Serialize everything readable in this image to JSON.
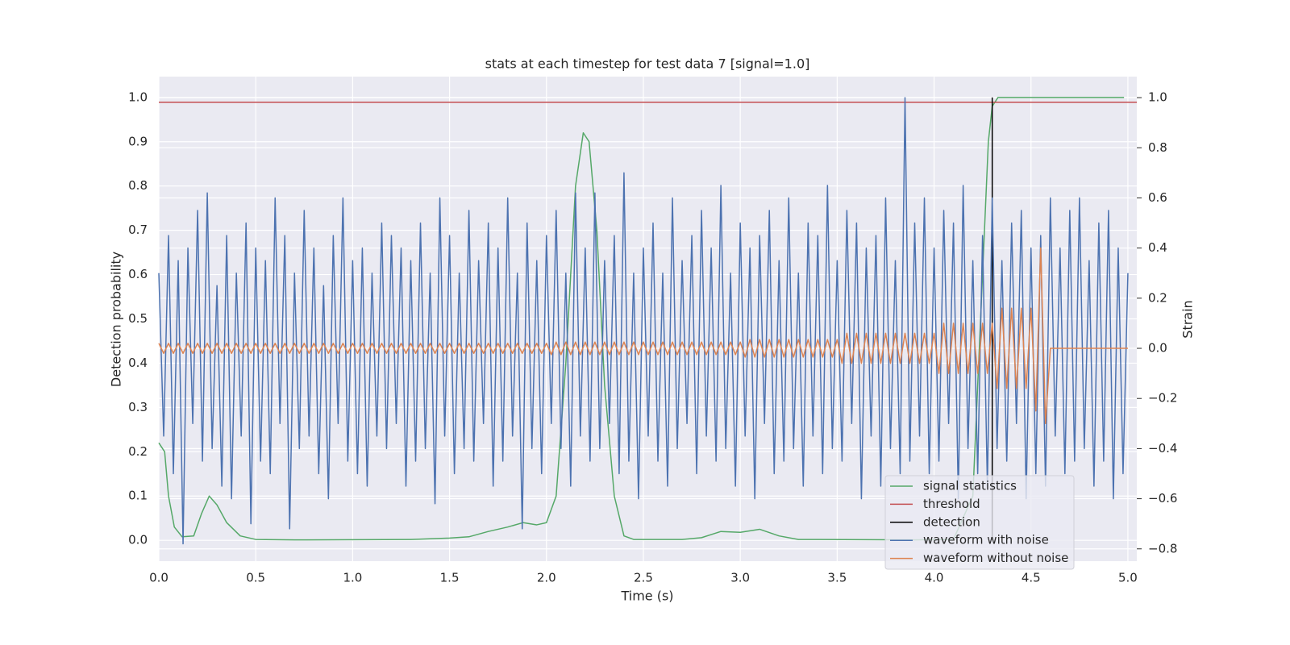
{
  "chart_data": {
    "type": "line",
    "title": "stats at each timestep for test data 7 [signal=1.0]",
    "x_label": "Time (s)",
    "y_label": "Detection probability",
    "y2_label": "Strain",
    "xlim": [
      0,
      5.046
    ],
    "ylim": [
      -0.047,
      1.047
    ],
    "y2lim": [
      -0.849,
      1.084
    ],
    "xticks": [
      {
        "value": 0,
        "label": "0.0"
      },
      {
        "value": 0.5,
        "label": "0.5"
      },
      {
        "value": 1,
        "label": "1.0"
      },
      {
        "value": 1.5,
        "label": "1.5"
      },
      {
        "value": 2,
        "label": "2.0"
      },
      {
        "value": 2.5,
        "label": "2.5"
      },
      {
        "value": 3,
        "label": "3.0"
      },
      {
        "value": 3.5,
        "label": "3.5"
      },
      {
        "value": 4,
        "label": "4.0"
      },
      {
        "value": 4.5,
        "label": "4.5"
      },
      {
        "value": 5,
        "label": "5.0"
      }
    ],
    "yticks": [
      {
        "value": 0,
        "label": "0.0"
      },
      0.1,
      0.2,
      0.3,
      0.4,
      0.5,
      0.6,
      0.7,
      0.8,
      0.9,
      {
        "value": 1,
        "label": "1.0"
      }
    ],
    "y2ticks": [
      {
        "value": -0.8,
        "label": "−0.8"
      },
      {
        "value": -0.6,
        "label": "−0.6"
      },
      {
        "value": -0.4,
        "label": "−0.4"
      },
      {
        "value": -0.2,
        "label": "−0.2"
      },
      {
        "value": 0,
        "label": "0.0"
      },
      0.2,
      0.4,
      0.6,
      0.8,
      {
        "value": 1,
        "label": "1.0"
      }
    ],
    "grid": true,
    "legend": "lower right",
    "x": [
      0,
      0.025,
      0.05,
      0.075,
      0.1,
      0.125,
      0.15,
      0.175,
      0.2,
      0.225,
      0.25,
      0.275,
      0.3,
      0.325,
      0.35,
      0.375,
      0.4,
      0.425,
      0.45,
      0.475,
      0.5,
      0.525,
      0.55,
      0.575,
      0.6,
      0.625,
      0.65,
      0.675,
      0.7,
      0.725,
      0.75,
      0.775,
      0.8,
      0.825,
      0.85,
      0.875,
      0.9,
      0.925,
      0.95,
      0.975,
      1,
      1.025,
      1.05,
      1.075,
      1.1,
      1.125,
      1.15,
      1.175,
      1.2,
      1.225,
      1.25,
      1.275,
      1.3,
      1.325,
      1.35,
      1.375,
      1.4,
      1.425,
      1.45,
      1.475,
      1.5,
      1.525,
      1.55,
      1.575,
      1.6,
      1.625,
      1.65,
      1.675,
      1.7,
      1.725,
      1.75,
      1.775,
      1.8,
      1.825,
      1.85,
      1.875,
      1.9,
      1.925,
      1.95,
      1.975,
      2,
      2.025,
      2.05,
      2.075,
      2.1,
      2.125,
      2.15,
      2.175,
      2.2,
      2.225,
      2.25,
      2.275,
      2.3,
      2.325,
      2.35,
      2.375,
      2.4,
      2.425,
      2.45,
      2.475,
      2.5,
      2.525,
      2.55,
      2.575,
      2.6,
      2.625,
      2.65,
      2.675,
      2.7,
      2.725,
      2.75,
      2.775,
      2.8,
      2.825,
      2.85,
      2.875,
      2.9,
      2.925,
      2.95,
      2.975,
      3,
      3.025,
      3.05,
      3.075,
      3.1,
      3.125,
      3.15,
      3.175,
      3.2,
      3.225,
      3.25,
      3.275,
      3.3,
      3.325,
      3.35,
      3.375,
      3.4,
      3.425,
      3.45,
      3.475,
      3.5,
      3.525,
      3.55,
      3.575,
      3.6,
      3.625,
      3.65,
      3.675,
      3.7,
      3.725,
      3.75,
      3.775,
      3.8,
      3.825,
      3.85,
      3.875,
      3.9,
      3.925,
      3.95,
      3.975,
      4,
      4.025,
      4.05,
      4.075,
      4.1,
      4.125,
      4.15,
      4.175,
      4.2,
      4.225,
      4.25,
      4.275,
      4.3,
      4.325,
      4.35,
      4.375,
      4.4,
      4.425,
      4.45,
      4.475,
      4.5,
      4.525,
      4.55,
      4.575,
      4.6,
      4.625,
      4.65,
      4.675,
      4.7,
      4.725,
      4.75,
      4.775,
      4.8,
      4.825,
      4.85,
      4.875,
      4.9,
      4.925,
      4.95,
      4.975,
      5
    ],
    "series": [
      {
        "name": "signal statistics",
        "color": "#55a868",
        "axis": "y",
        "x": [
          0,
          0.03,
          0.05,
          0.08,
          0.12,
          0.18,
          0.22,
          0.26,
          0.3,
          0.35,
          0.42,
          0.5,
          0.7,
          1.3,
          1.5,
          1.6,
          1.7,
          1.8,
          1.88,
          1.95,
          2.0,
          2.05,
          2.1,
          2.15,
          2.19,
          2.22,
          2.26,
          2.3,
          2.35,
          2.4,
          2.45,
          2.7,
          2.8,
          2.9,
          3.0,
          3.1,
          3.2,
          3.3,
          3.9,
          4.1,
          4.2,
          4.25,
          4.28,
          4.3,
          4.33,
          4.98
        ],
        "values": [
          0.22,
          0.2,
          0.1,
          0.03,
          0.008,
          0.01,
          0.06,
          0.1,
          0.08,
          0.04,
          0.01,
          0.002,
          0.001,
          0.002,
          0.005,
          0.008,
          0.02,
          0.03,
          0.04,
          0.035,
          0.04,
          0.1,
          0.4,
          0.8,
          0.92,
          0.9,
          0.7,
          0.35,
          0.1,
          0.01,
          0.002,
          0.002,
          0.006,
          0.02,
          0.018,
          0.025,
          0.01,
          0.002,
          0.001,
          0.002,
          0.1,
          0.6,
          0.9,
          0.98,
          1.0,
          1.0
        ]
      },
      {
        "name": "threshold",
        "color": "#c44e52",
        "axis": "y",
        "value": 0.989
      },
      {
        "name": "detection",
        "color": "#000000",
        "axis": "y",
        "x": [
          4.3,
          4.3
        ],
        "values": [
          0,
          1
        ]
      },
      {
        "name": "waveform with noise",
        "color": "#4c72b0",
        "axis": "y2",
        "values": [
          0.3,
          -0.35,
          0.45,
          -0.5,
          0.35,
          -0.78,
          0.4,
          -0.3,
          0.55,
          -0.45,
          0.62,
          -0.4,
          0.25,
          -0.55,
          0.45,
          -0.6,
          0.3,
          -0.35,
          0.5,
          -0.7,
          0.4,
          -0.45,
          0.35,
          -0.5,
          0.6,
          -0.3,
          0.45,
          -0.72,
          0.3,
          -0.4,
          0.55,
          -0.35,
          0.4,
          -0.5,
          0.25,
          -0.6,
          0.45,
          -0.3,
          0.6,
          -0.45,
          0.35,
          -0.5,
          0.4,
          -0.55,
          0.3,
          -0.35,
          0.5,
          -0.4,
          0.45,
          -0.3,
          0.4,
          -0.55,
          0.35,
          -0.45,
          0.5,
          -0.4,
          0.3,
          -0.62,
          0.6,
          -0.35,
          0.45,
          -0.5,
          0.3,
          -0.4,
          0.55,
          -0.45,
          0.35,
          -0.3,
          0.5,
          -0.55,
          0.4,
          -0.45,
          0.6,
          -0.35,
          0.3,
          -0.72,
          0.5,
          -0.4,
          0.35,
          -0.5,
          0.45,
          -0.3,
          0.55,
          -0.4,
          0.3,
          -0.55,
          0.62,
          -0.35,
          0.4,
          -0.45,
          0.62,
          -0.4,
          0.35,
          -0.3,
          0.45,
          -0.5,
          0.7,
          -0.45,
          0.3,
          -0.6,
          0.4,
          -0.35,
          0.5,
          -0.45,
          0.3,
          -0.55,
          0.6,
          -0.4,
          0.35,
          -0.3,
          0.45,
          -0.5,
          0.55,
          -0.35,
          0.4,
          -0.45,
          0.65,
          -0.4,
          0.3,
          -0.55,
          0.5,
          -0.35,
          0.4,
          -0.6,
          0.45,
          -0.3,
          0.55,
          -0.5,
          0.35,
          -0.45,
          0.6,
          -0.4,
          0.3,
          -0.55,
          0.5,
          -0.35,
          0.45,
          -0.5,
          0.65,
          -0.4,
          0.35,
          -0.45,
          0.55,
          -0.3,
          0.5,
          -0.6,
          0.4,
          -0.35,
          0.45,
          -0.55,
          0.6,
          -0.4,
          0.35,
          -0.5,
          1.0,
          -0.45,
          0.5,
          -0.35,
          0.6,
          -0.5,
          0.4,
          -0.45,
          0.55,
          -0.3,
          0.5,
          -0.6,
          0.65,
          -0.4,
          0.35,
          -0.5,
          0.45,
          -0.55,
          0.6,
          -0.4,
          0.35,
          -0.45,
          0.5,
          -0.3,
          0.55,
          -0.6,
          0.4,
          -0.5,
          0.45,
          -0.55,
          0.6,
          -0.35,
          0.4,
          -0.5,
          0.55,
          -0.45,
          0.6,
          -0.4,
          0.35,
          -0.55,
          0.5,
          -0.45,
          0.55,
          -0.6,
          0.4,
          -0.5,
          0.3
        ]
      },
      {
        "name": "waveform without noise",
        "color": "#dd8452",
        "axis": "y2",
        "values": [
          0.02,
          -0.02,
          0.02,
          -0.02,
          0.02,
          -0.02,
          0.02,
          -0.02,
          0.02,
          -0.02,
          0.02,
          -0.02,
          0.02,
          -0.02,
          0.02,
          -0.02,
          0.02,
          -0.02,
          0.02,
          -0.02,
          0.02,
          -0.02,
          0.02,
          -0.02,
          0.02,
          -0.02,
          0.02,
          -0.02,
          0.02,
          -0.02,
          0.02,
          -0.02,
          0.02,
          -0.02,
          0.02,
          -0.02,
          0.02,
          -0.02,
          0.02,
          -0.02,
          0.02,
          -0.02,
          0.02,
          -0.02,
          0.02,
          -0.02,
          0.02,
          -0.02,
          0.02,
          -0.02,
          0.02,
          -0.02,
          0.02,
          -0.02,
          0.02,
          -0.02,
          0.02,
          -0.02,
          0.02,
          -0.02,
          0.02,
          -0.02,
          0.02,
          -0.02,
          0.02,
          -0.02,
          0.02,
          -0.02,
          0.02,
          -0.02,
          0.02,
          -0.02,
          0.02,
          -0.02,
          0.02,
          -0.02,
          0.02,
          -0.02,
          0.02,
          -0.02,
          0.02,
          -0.025,
          0.025,
          -0.025,
          0.025,
          -0.025,
          0.025,
          -0.025,
          0.025,
          -0.025,
          0.025,
          -0.025,
          0.025,
          -0.025,
          0.025,
          -0.025,
          0.025,
          -0.025,
          0.025,
          -0.025,
          0.025,
          -0.025,
          0.025,
          -0.025,
          0.025,
          -0.025,
          0.025,
          -0.025,
          0.025,
          -0.025,
          0.025,
          -0.025,
          0.025,
          -0.025,
          0.025,
          -0.025,
          0.025,
          -0.025,
          0.025,
          -0.025,
          0.025,
          -0.035,
          0.035,
          -0.035,
          0.035,
          -0.035,
          0.035,
          -0.035,
          0.035,
          -0.035,
          0.035,
          -0.035,
          0.035,
          -0.035,
          0.035,
          -0.035,
          0.035,
          -0.035,
          0.035,
          -0.035,
          0.035,
          -0.06,
          0.06,
          -0.06,
          0.06,
          -0.06,
          0.06,
          -0.06,
          0.06,
          -0.06,
          0.06,
          -0.06,
          0.06,
          -0.06,
          0.06,
          -0.06,
          0.06,
          -0.06,
          0.06,
          -0.06,
          0.06,
          -0.1,
          0.1,
          -0.1,
          0.1,
          -0.1,
          0.1,
          -0.1,
          0.1,
          -0.1,
          0.1,
          -0.1,
          0.1,
          -0.16,
          0.16,
          -0.16,
          0.16,
          -0.16,
          0.16,
          -0.16,
          0.16,
          -0.25,
          0.4,
          -0.3,
          0,
          0,
          0,
          0,
          0,
          0,
          0,
          0,
          0,
          0,
          0,
          0,
          0,
          0,
          0,
          0,
          0
        ]
      }
    ]
  }
}
